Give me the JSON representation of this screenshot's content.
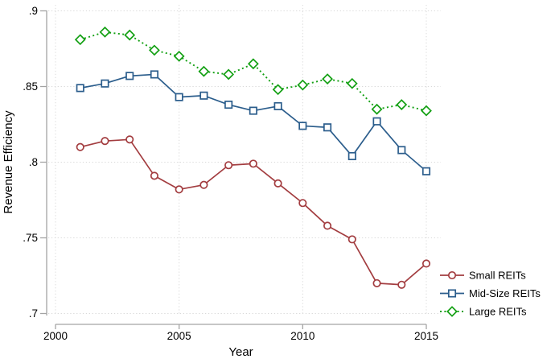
{
  "chart_data": {
    "type": "line",
    "title": "",
    "xlabel": "Year",
    "ylabel": "Revenue Efficiency",
    "xlim": [
      2000,
      2015
    ],
    "ylim": [
      0.7,
      0.9
    ],
    "x_tick_values": [
      2000,
      2005,
      2010,
      2015
    ],
    "x_tick_labels": [
      "2000",
      "2005",
      "2010",
      "2015"
    ],
    "y_tick_values": [
      0.9,
      0.85,
      0.8,
      0.75,
      0.7
    ],
    "y_tick_labels": [
      ".9",
      ".85",
      ".8",
      ".75",
      ".7"
    ],
    "grid": "dotted",
    "legend_position": "outside-bottom-right",
    "x": [
      2001,
      2002,
      2003,
      2004,
      2005,
      2006,
      2007,
      2008,
      2009,
      2010,
      2011,
      2012,
      2013,
      2014,
      2015
    ],
    "series": [
      {
        "name": "Small REITs",
        "color": "#a33d40",
        "marker": "circle",
        "line_style": "solid",
        "values": [
          0.81,
          0.814,
          0.815,
          0.791,
          0.782,
          0.785,
          0.798,
          0.799,
          0.786,
          0.773,
          0.758,
          0.749,
          0.72,
          0.719,
          0.733
        ]
      },
      {
        "name": "Mid-Size REITs",
        "color": "#2b5d8c",
        "marker": "square",
        "line_style": "solid",
        "values": [
          0.849,
          0.852,
          0.857,
          0.858,
          0.843,
          0.844,
          0.838,
          0.834,
          0.837,
          0.824,
          0.823,
          0.804,
          0.827,
          0.808,
          0.794
        ]
      },
      {
        "name": "Large REITs",
        "color": "#13a013",
        "marker": "diamond",
        "line_style": "dotted",
        "values": [
          0.881,
          0.886,
          0.884,
          0.874,
          0.87,
          0.86,
          0.858,
          0.865,
          0.848,
          0.851,
          0.855,
          0.852,
          0.835,
          0.838,
          0.834
        ]
      }
    ]
  },
  "colors": {
    "background": "#ffffff",
    "grid": "#d9d9d9",
    "axis": "#a3a3a3",
    "text": "#000000"
  }
}
